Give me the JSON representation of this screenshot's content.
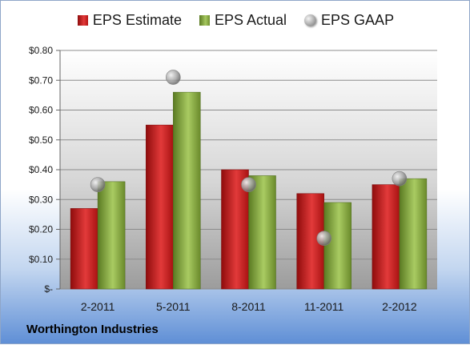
{
  "chart_data": {
    "type": "bar",
    "categories": [
      "2-2011",
      "5-2011",
      "8-2011",
      "11-2011",
      "2-2012"
    ],
    "series": [
      {
        "name": "EPS Estimate",
        "values": [
          0.27,
          0.55,
          0.4,
          0.32,
          0.35
        ],
        "kind": "bar",
        "color": "#c62020"
      },
      {
        "name": "EPS Actual",
        "values": [
          0.36,
          0.66,
          0.38,
          0.29,
          0.37
        ],
        "kind": "bar",
        "color": "#8aab45"
      },
      {
        "name": "EPS GAAP",
        "values": [
          0.35,
          0.71,
          0.35,
          0.17,
          0.37
        ],
        "kind": "marker",
        "color": "#a0a0a0"
      }
    ],
    "yticks": [
      0.0,
      0.1,
      0.2,
      0.3,
      0.4,
      0.5,
      0.6,
      0.7,
      0.8
    ],
    "ytick_labels": [
      "$-",
      "$0.10",
      "$0.20",
      "$0.30",
      "$0.40",
      "$0.50",
      "$0.60",
      "$0.70",
      "$0.80"
    ],
    "ylim": [
      0,
      0.8
    ],
    "grid": true,
    "legend_placement": "top"
  },
  "legend": {
    "estimate": "EPS Estimate",
    "actual": "EPS Actual",
    "gaap": "EPS GAAP"
  },
  "footer": {
    "company": "Worthington Industries"
  }
}
